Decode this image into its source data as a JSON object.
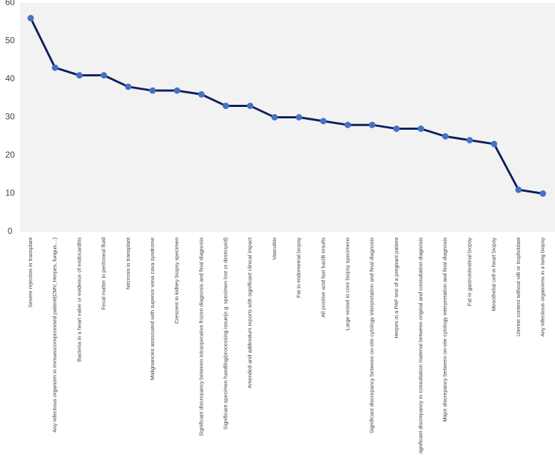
{
  "chart_data": {
    "type": "line",
    "categories": [
      "Severe rejection in transplant",
      "Any infectious organism in immunocompromised patient(CMV, Herpes, fungus....)",
      "Bacteria in a heart valve or evidence of endocarditis",
      "Fecal matter in peritoneal fluid",
      "Necrosis in transplant",
      "Malignancies associated with superior vena cava syndrome",
      "Crescent in kidney biopsy specimen",
      "Significant discrepancy between intraoperative frozen diagnosis and final diagnosis",
      "Significant specimen handling/processing issue(e.g. specimen lost or destroyed)",
      "Amended and addendum reports with significant clinical impact",
      "Vasculitis",
      "Fat in endometrial biopsy",
      "All positive acid fast bacilli results",
      "Large vessel in core biopsy specimens",
      "Significant discrepancy between on-site cytology interpretation and final diagnosis",
      "Herpes in a PAP test of a pregnant patient",
      "Significant discrepancy in consultation material between original and consultation diagnosis",
      "Major discrepancy between on-site cytology interpretation and final diagnosis",
      "Fat in gastrointestinal biopsy",
      "Mesothelial cell in heart biopsy",
      "Uterine content without villi or trophoblast",
      "Any infectious organisms in a lung biopsy"
    ],
    "values": [
      56,
      43,
      41,
      41,
      38,
      37,
      37,
      36,
      33,
      33,
      30,
      30,
      29,
      28,
      28,
      27,
      27,
      25,
      24,
      23,
      11,
      10
    ],
    "color": "#0f1f5c",
    "marker_color": "#4472c4",
    "ylim": [
      0,
      60
    ],
    "yticks": [
      0,
      10,
      20,
      30,
      40,
      50,
      60
    ],
    "grid": false
  }
}
